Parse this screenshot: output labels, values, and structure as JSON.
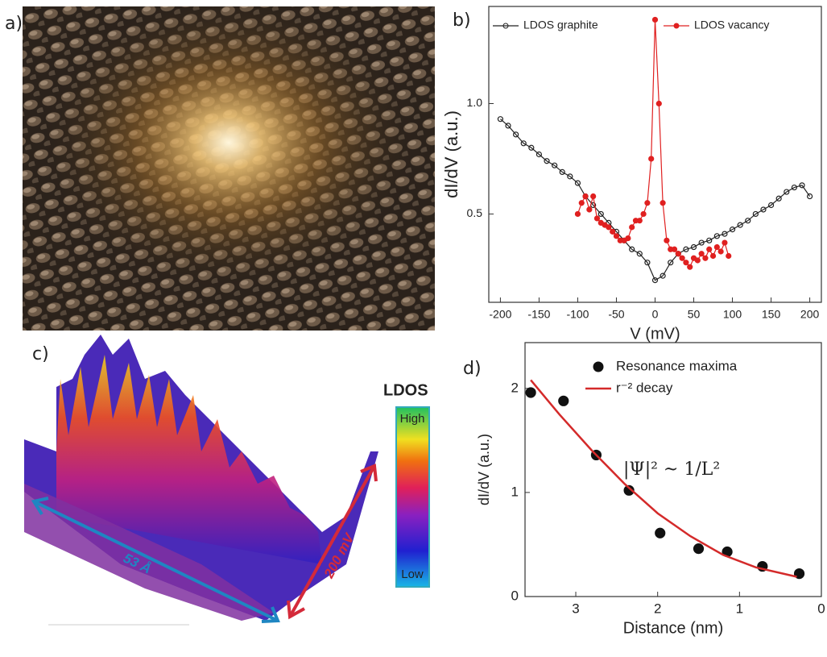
{
  "panel_labels": [
    "a)",
    "b)",
    "c)",
    "d)"
  ],
  "panel_c": {
    "colorbar_title": "LDOS",
    "colorbar_high": "High",
    "colorbar_low": "Low",
    "length_label": "53 Å",
    "energy_label": "200 mV"
  },
  "chart_data": [
    {
      "type": "line",
      "xlabel": "V (mV)",
      "ylabel": "dI/dV (a.u.)",
      "legend": "top",
      "xlim": [
        -215,
        215
      ],
      "ylim": [
        0.1,
        1.44
      ],
      "xticks": [
        -200,
        -150,
        -100,
        -50,
        0,
        50,
        100,
        150,
        200
      ],
      "yticks": [
        0.5,
        {
          "value": 1,
          "label": "1.0"
        }
      ],
      "series": [
        {
          "name": "LDOS graphite",
          "color": "#222222",
          "mode": "lines+markers",
          "marker": "open",
          "x": [
            -200,
            -190,
            -180,
            -170,
            -160,
            -150,
            -140,
            -130,
            -120,
            -110,
            -100,
            -90,
            -80,
            -70,
            -60,
            -50,
            -40,
            -30,
            -20,
            -10,
            0,
            10,
            20,
            30,
            40,
            50,
            60,
            70,
            80,
            90,
            100,
            110,
            120,
            130,
            140,
            150,
            160,
            170,
            180,
            190,
            200
          ],
          "values": [
            0.93,
            0.9,
            0.86,
            0.82,
            0.8,
            0.77,
            0.74,
            0.72,
            0.69,
            0.67,
            0.64,
            0.58,
            0.54,
            0.5,
            0.46,
            0.42,
            0.38,
            0.34,
            0.32,
            0.28,
            0.2,
            0.22,
            0.28,
            0.32,
            0.34,
            0.35,
            0.37,
            0.38,
            0.4,
            0.41,
            0.43,
            0.45,
            0.47,
            0.5,
            0.52,
            0.54,
            0.57,
            0.6,
            0.62,
            0.63,
            0.58
          ]
        },
        {
          "name": "LDOS vacancy",
          "color": "#e02020",
          "mode": "lines+markers",
          "marker": "filled",
          "x": [
            -100,
            -95,
            -90,
            -85,
            -80,
            -75,
            -70,
            -65,
            -60,
            -55,
            -50,
            -45,
            -40,
            -35,
            -30,
            -25,
            -20,
            -15,
            -10,
            -5,
            0,
            5,
            10,
            15,
            20,
            25,
            30,
            35,
            40,
            45,
            50,
            55,
            60,
            65,
            70,
            75,
            80,
            85,
            90,
            95
          ],
          "values": [
            0.5,
            0.55,
            0.58,
            0.52,
            0.58,
            0.48,
            0.46,
            0.45,
            0.44,
            0.42,
            0.4,
            0.38,
            0.38,
            0.39,
            0.44,
            0.47,
            0.47,
            0.5,
            0.55,
            0.75,
            1.38,
            1.0,
            0.55,
            0.38,
            0.34,
            0.34,
            0.32,
            0.3,
            0.28,
            0.26,
            0.3,
            0.29,
            0.32,
            0.3,
            0.34,
            0.31,
            0.35,
            0.33,
            0.37,
            0.31
          ]
        }
      ]
    },
    {
      "type": "scatter",
      "xlabel": "Distance (nm)",
      "ylabel": "dI/dV (a.u.)",
      "legend": "upper right",
      "annotation": "|Ψ|² ~ 1/L²",
      "xlim": [
        3.62,
        0
      ],
      "ylim": [
        0,
        2.44
      ],
      "xticks": [
        3,
        2,
        1,
        0
      ],
      "yticks": [
        0,
        1,
        2
      ],
      "series": [
        {
          "name": "Resonance maxima",
          "color": "#111111",
          "mode": "markers",
          "marker": "filled",
          "x": [
            3.55,
            3.15,
            2.75,
            2.35,
            1.97,
            1.5,
            1.15,
            0.72,
            0.27
          ],
          "values": [
            1.96,
            1.88,
            1.36,
            1.02,
            0.61,
            0.46,
            0.43,
            0.29,
            0.22
          ]
        },
        {
          "name": "r⁻² decay",
          "color": "#d42a2a",
          "mode": "lines",
          "x": [
            3.55,
            3.2,
            2.8,
            2.4,
            2.0,
            1.6,
            1.2,
            0.8,
            0.3
          ],
          "values": [
            2.08,
            1.75,
            1.4,
            1.08,
            0.8,
            0.58,
            0.4,
            0.28,
            0.19
          ]
        }
      ]
    }
  ]
}
